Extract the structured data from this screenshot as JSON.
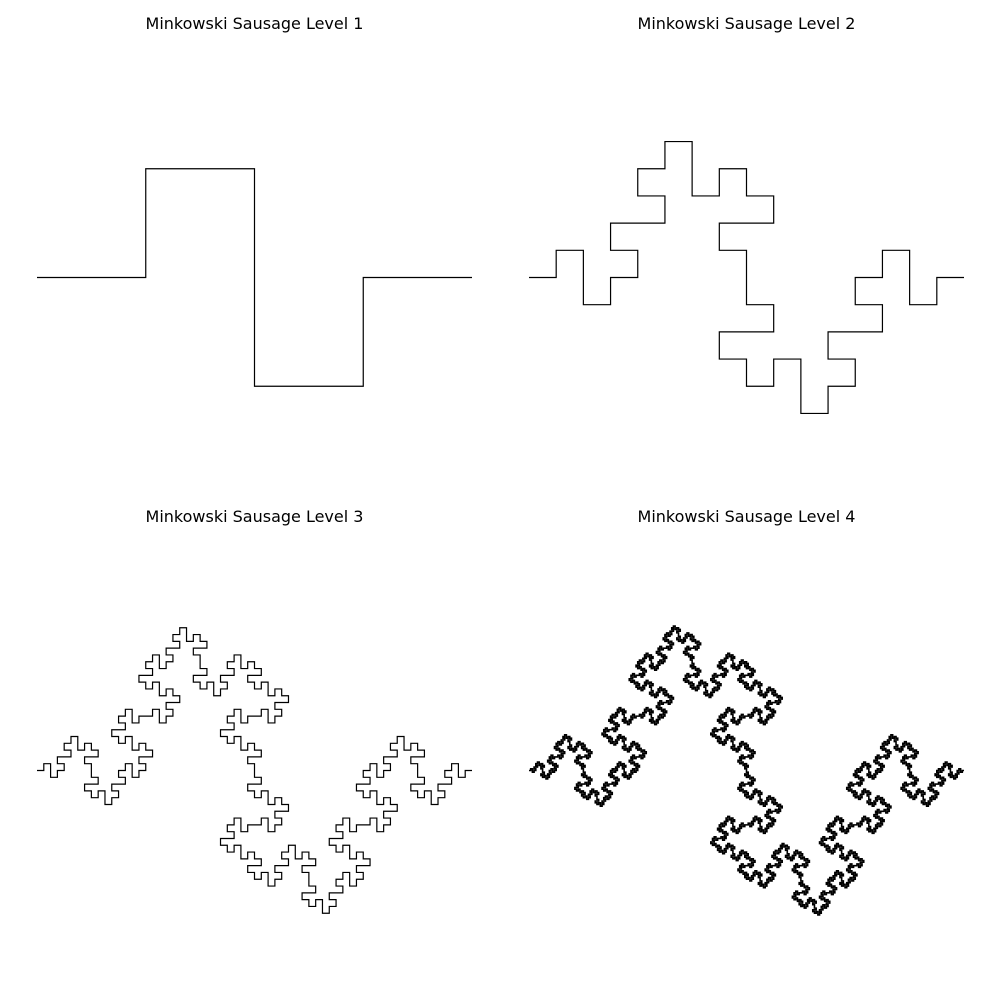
{
  "figure": {
    "background": "#ffffff",
    "line_color": "#000000",
    "panels": [
      {
        "title": "Minkowski Sausage Level 1",
        "level": 1
      },
      {
        "title": "Minkowski Sausage Level 2",
        "level": 2
      },
      {
        "title": "Minkowski Sausage Level 3",
        "level": 3
      },
      {
        "title": "Minkowski Sausage Level 4",
        "level": 4
      }
    ]
  },
  "chart_data": [
    {
      "type": "line",
      "title": "Minkowski Sausage Level 1",
      "generator_turns": [
        0,
        1,
        0,
        -1,
        -1,
        0,
        1,
        0
      ],
      "iterations": 1,
      "xlim": [
        0,
        1
      ],
      "grid": false,
      "axes": "off"
    },
    {
      "type": "line",
      "title": "Minkowski Sausage Level 2",
      "generator_turns": [
        0,
        1,
        0,
        -1,
        -1,
        0,
        1,
        0
      ],
      "iterations": 2,
      "xlim": [
        0,
        1
      ],
      "grid": false,
      "axes": "off"
    },
    {
      "type": "line",
      "title": "Minkowski Sausage Level 3",
      "generator_turns": [
        0,
        1,
        0,
        -1,
        -1,
        0,
        1,
        0
      ],
      "iterations": 3,
      "xlim": [
        0,
        1
      ],
      "grid": false,
      "axes": "off"
    },
    {
      "type": "line",
      "title": "Minkowski Sausage Level 4",
      "generator_turns": [
        0,
        1,
        0,
        -1,
        -1,
        0,
        1,
        0
      ],
      "iterations": 4,
      "xlim": [
        0,
        1
      ],
      "grid": false,
      "axes": "off"
    }
  ]
}
